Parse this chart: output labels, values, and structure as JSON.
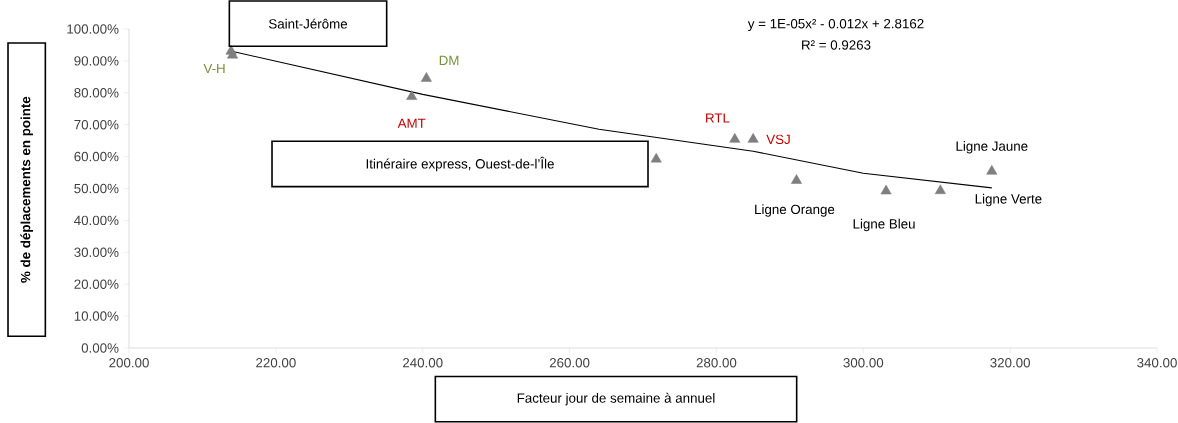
{
  "chart_data": {
    "type": "scatter",
    "xlabel": "Facteur jour de semaine à annuel",
    "ylabel": "% de déplacements en pointe",
    "xlim": [
      200,
      340
    ],
    "ylim": [
      0,
      100
    ],
    "xticks": [
      {
        "value": 200,
        "label": "200.00"
      },
      {
        "value": 220,
        "label": "220.00"
      },
      {
        "value": 240,
        "label": "240.00"
      },
      {
        "value": 260,
        "label": "260.00"
      },
      {
        "value": 280,
        "label": "280.00"
      },
      {
        "value": 300,
        "label": "300.00"
      },
      {
        "value": 320,
        "label": "320.00"
      },
      {
        "value": 340,
        "label": "340.00"
      }
    ],
    "yticks": [
      {
        "value": 0,
        "label": "0.00%"
      },
      {
        "value": 10,
        "label": "10.00%"
      },
      {
        "value": 20,
        "label": "20.00%"
      },
      {
        "value": 30,
        "label": "30.00%"
      },
      {
        "value": 40,
        "label": "40.00%"
      },
      {
        "value": 50,
        "label": "50.00%"
      },
      {
        "value": 60,
        "label": "60.00%"
      },
      {
        "value": 70,
        "label": "70.00%"
      },
      {
        "value": 80,
        "label": "80.00%"
      },
      {
        "value": 90,
        "label": "90.00%"
      },
      {
        "value": 100,
        "label": "100.00%"
      }
    ],
    "grid": false,
    "marker": "triangle",
    "series": [
      {
        "color": "#7f7f7f",
        "x": [
          213.9,
          214.1,
          238.5,
          240.5,
          271.8,
          282.5,
          285.0,
          290.9,
          303.1,
          310.5,
          317.5
        ],
        "values": [
          93.0,
          91.8,
          78.8,
          84.5,
          59.2,
          65.4,
          65.4,
          52.5,
          49.2,
          49.3,
          55.4
        ]
      },
      {
        "type": "line",
        "color": "#000000",
        "marker": "none",
        "x": [
          214,
          240,
          264,
          285,
          300,
          317.5
        ],
        "values": [
          93.0,
          79.5,
          68.6,
          61.7,
          54.8,
          50.2
        ]
      }
    ],
    "annotations": [
      "Saint-Jérôme",
      {
        "text": "V-H",
        "x": 214.1,
        "y": 91.8
      },
      {
        "text": "AMT",
        "x": 238.5,
        "y": 78.8
      },
      {
        "text": "DM",
        "x": 240.5,
        "y": 84.5
      },
      "Itinéraire express, Ouest-de-l’Île",
      {
        "text": "RTL",
        "x": 282.5,
        "y": 65.4
      },
      {
        "text": "VSJ",
        "x": 285.0,
        "y": 65.4
      },
      {
        "text": "Ligne Orange",
        "x": 290.9,
        "y": 52.5
      },
      {
        "text": "Ligne Bleu",
        "x": 303.1,
        "y": 49.2
      },
      {
        "text": "Ligne Verte",
        "x": 310.5,
        "y": 49.3
      },
      {
        "text": "Ligne Jaune",
        "x": 317.5,
        "y": 55.4
      },
      "y = 1E-05x² - 0.012x + 2.8162",
      "R² = 0.9263"
    ]
  }
}
